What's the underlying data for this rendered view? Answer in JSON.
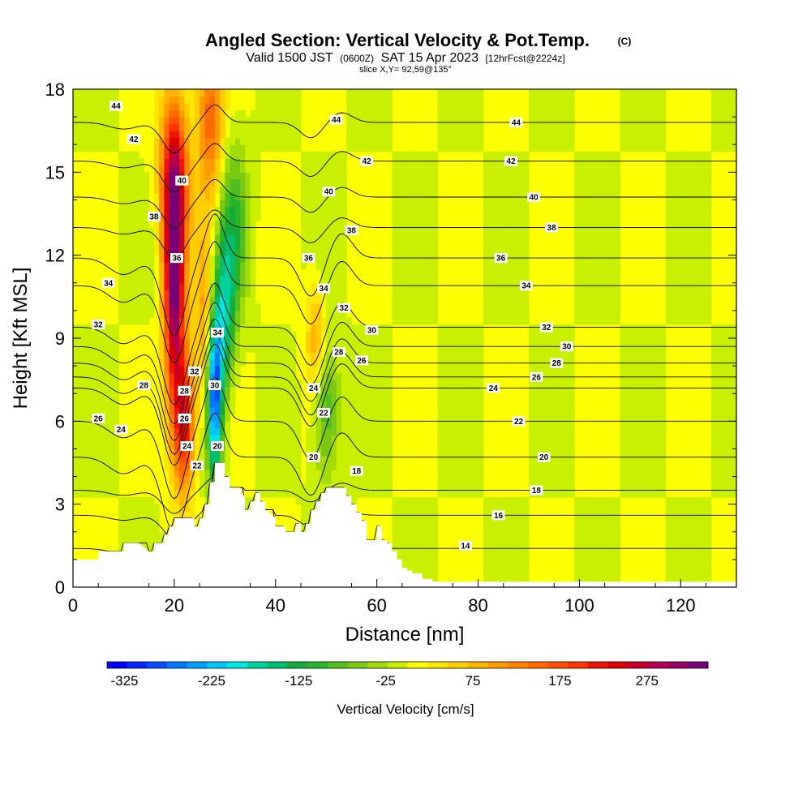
{
  "header": {
    "title": "Angled Section: Vertical Velocity & Pot.Temp.",
    "title_mark": "(C)",
    "valid_prefix": "Valid 1500 JST",
    "valid_utc": "(0600Z)",
    "valid_date": "SAT 15 Apr 2023",
    "forecast_tag": "[12hrFcst@2224z]",
    "slice": "slice X,Y= 92,59@135°"
  },
  "chart_data": {
    "type": "heatmap",
    "title": "Angled Section: Vertical Velocity & Pot.Temp.",
    "xlabel": "Distance [nm]",
    "ylabel": "Height [Kft MSL]",
    "xlim": [
      0,
      131
    ],
    "ylim": [
      0,
      18
    ],
    "x_ticks": [
      0,
      20,
      40,
      60,
      80,
      100,
      120
    ],
    "y_ticks": [
      0,
      3,
      6,
      9,
      12,
      15,
      18
    ],
    "x_tick_labels": [
      "0",
      "20",
      "40",
      "60",
      "80",
      "100",
      "120"
    ],
    "y_tick_labels": [
      "0",
      "3",
      "6",
      "9",
      "12",
      "15",
      "18"
    ],
    "terrain": {
      "x": [
        0,
        5,
        5,
        10,
        10,
        13,
        15,
        16,
        16,
        18,
        18,
        19,
        19,
        20,
        20,
        24,
        24,
        25,
        25,
        26,
        26,
        27,
        27,
        28,
        28,
        29,
        29,
        30,
        30,
        31,
        31,
        32,
        33,
        34,
        34,
        35,
        35,
        36,
        36,
        37,
        37,
        38,
        38,
        40,
        40,
        42,
        42,
        44,
        44,
        45,
        45,
        46,
        46,
        47,
        47,
        48,
        48,
        49,
        49,
        50,
        50,
        54,
        54,
        55,
        55,
        56,
        56,
        57,
        57,
        58,
        58,
        60,
        60,
        61,
        61,
        62,
        62,
        63,
        63,
        64,
        64,
        65,
        65,
        66,
        66,
        67,
        67,
        69,
        69,
        71,
        71,
        131
      ],
      "height_kft": [
        1.0,
        1.0,
        1.3,
        1.3,
        1.6,
        1.6,
        1.3,
        1.3,
        1.6,
        1.6,
        1.9,
        1.9,
        2.2,
        2.2,
        2.5,
        2.5,
        2.2,
        2.2,
        2.5,
        2.5,
        3.0,
        3.0,
        3.8,
        3.8,
        4.5,
        4.5,
        4.5,
        4.5,
        4.0,
        4.0,
        3.6,
        3.6,
        3.6,
        3.2,
        2.8,
        2.8,
        3.1,
        3.1,
        3.4,
        3.4,
        3.1,
        3.1,
        2.8,
        2.5,
        2.2,
        2.2,
        2.0,
        2.0,
        2.3,
        2.3,
        2.0,
        2.0,
        2.3,
        2.3,
        2.8,
        2.8,
        3.1,
        3.1,
        3.4,
        3.4,
        3.6,
        3.6,
        3.3,
        3.3,
        3.0,
        3.0,
        2.7,
        2.7,
        2.4,
        2.4,
        1.7,
        1.7,
        2.2,
        2.2,
        1.7,
        1.7,
        1.6,
        1.6,
        1.3,
        1.3,
        1.0,
        1.0,
        0.7,
        0.7,
        0.6,
        0.6,
        0.5,
        0.5,
        0.3,
        0.3,
        0.2,
        0.2
      ]
    },
    "vertical_velocity_features": [
      {
        "x": 20.0,
        "y_kft": 11.0,
        "w_cms": 330,
        "sx": 2.0,
        "sy": 4.5
      },
      {
        "x": 20.0,
        "y_kft": 15.0,
        "w_cms": 180,
        "sx": 3.0,
        "sy": 3.0
      },
      {
        "x": 27.0,
        "y_kft": 17.0,
        "w_cms": 150,
        "sx": 2.5,
        "sy": 3.0
      },
      {
        "x": 22.0,
        "y_kft": 6.0,
        "w_cms": 240,
        "sx": 2.0,
        "sy": 2.5
      },
      {
        "x": 28.0,
        "y_kft": 7.0,
        "w_cms": -300,
        "sx": 1.5,
        "sy": 3.0
      },
      {
        "x": 30.0,
        "y_kft": 10.0,
        "w_cms": -150,
        "sx": 2.0,
        "sy": 3.0
      },
      {
        "x": 32.0,
        "y_kft": 13.0,
        "w_cms": -90,
        "sx": 2.5,
        "sy": 3.0
      },
      {
        "x": 50.0,
        "y_kft": 6.5,
        "w_cms": -100,
        "sx": 2.5,
        "sy": 2.5
      },
      {
        "x": 48.0,
        "y_kft": 9.0,
        "w_cms": 90,
        "sx": 2.0,
        "sy": 2.0
      },
      {
        "x": 26.0,
        "y_kft": 10.0,
        "w_cms": 100,
        "sx": 2.0,
        "sy": 3.0
      }
    ],
    "theta_contours_c": [
      14,
      16,
      18,
      20,
      22,
      24,
      26,
      28,
      30,
      32,
      34,
      36,
      38,
      40,
      42,
      44
    ],
    "contour_labels": [
      {
        "x": 8.5,
        "y_kft": 17.4,
        "text": "44"
      },
      {
        "x": 12.0,
        "y_kft": 16.2,
        "text": "42"
      },
      {
        "x": 21.5,
        "y_kft": 14.7,
        "text": "40"
      },
      {
        "x": 16.0,
        "y_kft": 13.4,
        "text": "38"
      },
      {
        "x": 20.5,
        "y_kft": 11.9,
        "text": "36"
      },
      {
        "x": 7.0,
        "y_kft": 11.0,
        "text": "34"
      },
      {
        "x": 5.0,
        "y_kft": 9.5,
        "text": "32"
      },
      {
        "x": 14.0,
        "y_kft": 7.3,
        "text": "28"
      },
      {
        "x": 5.0,
        "y_kft": 6.1,
        "text": "26"
      },
      {
        "x": 9.5,
        "y_kft": 5.7,
        "text": "24"
      },
      {
        "x": 28.5,
        "y_kft": 9.2,
        "text": "34"
      },
      {
        "x": 24.0,
        "y_kft": 7.8,
        "text": "32"
      },
      {
        "x": 28.0,
        "y_kft": 7.3,
        "text": "30"
      },
      {
        "x": 22.0,
        "y_kft": 7.1,
        "text": "28"
      },
      {
        "x": 22.0,
        "y_kft": 6.1,
        "text": "26"
      },
      {
        "x": 22.5,
        "y_kft": 5.1,
        "text": "24"
      },
      {
        "x": 24.5,
        "y_kft": 4.4,
        "text": "22"
      },
      {
        "x": 28.5,
        "y_kft": 5.1,
        "text": "20"
      },
      {
        "x": 52.0,
        "y_kft": 16.9,
        "text": "44"
      },
      {
        "x": 58.0,
        "y_kft": 15.4,
        "text": "42"
      },
      {
        "x": 50.5,
        "y_kft": 14.3,
        "text": "40"
      },
      {
        "x": 55.0,
        "y_kft": 12.9,
        "text": "38"
      },
      {
        "x": 46.5,
        "y_kft": 11.9,
        "text": "36"
      },
      {
        "x": 49.5,
        "y_kft": 10.8,
        "text": "34"
      },
      {
        "x": 53.5,
        "y_kft": 10.1,
        "text": "32"
      },
      {
        "x": 59.0,
        "y_kft": 9.3,
        "text": "30"
      },
      {
        "x": 52.5,
        "y_kft": 8.5,
        "text": "28"
      },
      {
        "x": 57.0,
        "y_kft": 8.2,
        "text": "26"
      },
      {
        "x": 47.5,
        "y_kft": 7.2,
        "text": "24"
      },
      {
        "x": 49.5,
        "y_kft": 6.3,
        "text": "22"
      },
      {
        "x": 47.5,
        "y_kft": 4.7,
        "text": "20"
      },
      {
        "x": 56.0,
        "y_kft": 4.2,
        "text": "18"
      },
      {
        "x": 87.5,
        "y_kft": 16.8,
        "text": "44"
      },
      {
        "x": 86.5,
        "y_kft": 15.4,
        "text": "42"
      },
      {
        "x": 91.0,
        "y_kft": 14.1,
        "text": "40"
      },
      {
        "x": 94.5,
        "y_kft": 13.0,
        "text": "38"
      },
      {
        "x": 84.5,
        "y_kft": 11.9,
        "text": "36"
      },
      {
        "x": 89.5,
        "y_kft": 10.9,
        "text": "34"
      },
      {
        "x": 93.5,
        "y_kft": 9.4,
        "text": "32"
      },
      {
        "x": 97.5,
        "y_kft": 8.7,
        "text": "30"
      },
      {
        "x": 95.5,
        "y_kft": 8.1,
        "text": "28"
      },
      {
        "x": 91.5,
        "y_kft": 7.6,
        "text": "26"
      },
      {
        "x": 83.0,
        "y_kft": 7.2,
        "text": "24"
      },
      {
        "x": 88.0,
        "y_kft": 6.0,
        "text": "22"
      },
      {
        "x": 93.0,
        "y_kft": 4.7,
        "text": "20"
      },
      {
        "x": 91.5,
        "y_kft": 3.5,
        "text": "18"
      },
      {
        "x": 84.0,
        "y_kft": 2.6,
        "text": "16"
      },
      {
        "x": 77.5,
        "y_kft": 1.5,
        "text": "14"
      }
    ],
    "colorbar": {
      "label": "Vertical Velocity [cm/s]",
      "tick_labels": [
        "-325",
        "-225",
        "-125",
        "-25",
        "75",
        "175",
        "275"
      ],
      "tick_values": [
        -325,
        -225,
        -125,
        -25,
        75,
        175,
        275
      ],
      "min": -345,
      "max": 345,
      "colors": [
        "#0000ff",
        "#0028ff",
        "#0050ff",
        "#0078ff",
        "#00a0ff",
        "#00c8ff",
        "#00e6e6",
        "#00d2a0",
        "#00be6e",
        "#14aa3c",
        "#28b428",
        "#50be1e",
        "#78c814",
        "#a0dc0a",
        "#c8f000",
        "#ffff00",
        "#ffe600",
        "#ffcd00",
        "#ffb400",
        "#ff9b00",
        "#ff8200",
        "#ff6900",
        "#ff5000",
        "#ff3200",
        "#f01400",
        "#dc0000",
        "#c80028",
        "#b40050",
        "#960064",
        "#780078"
      ]
    }
  }
}
